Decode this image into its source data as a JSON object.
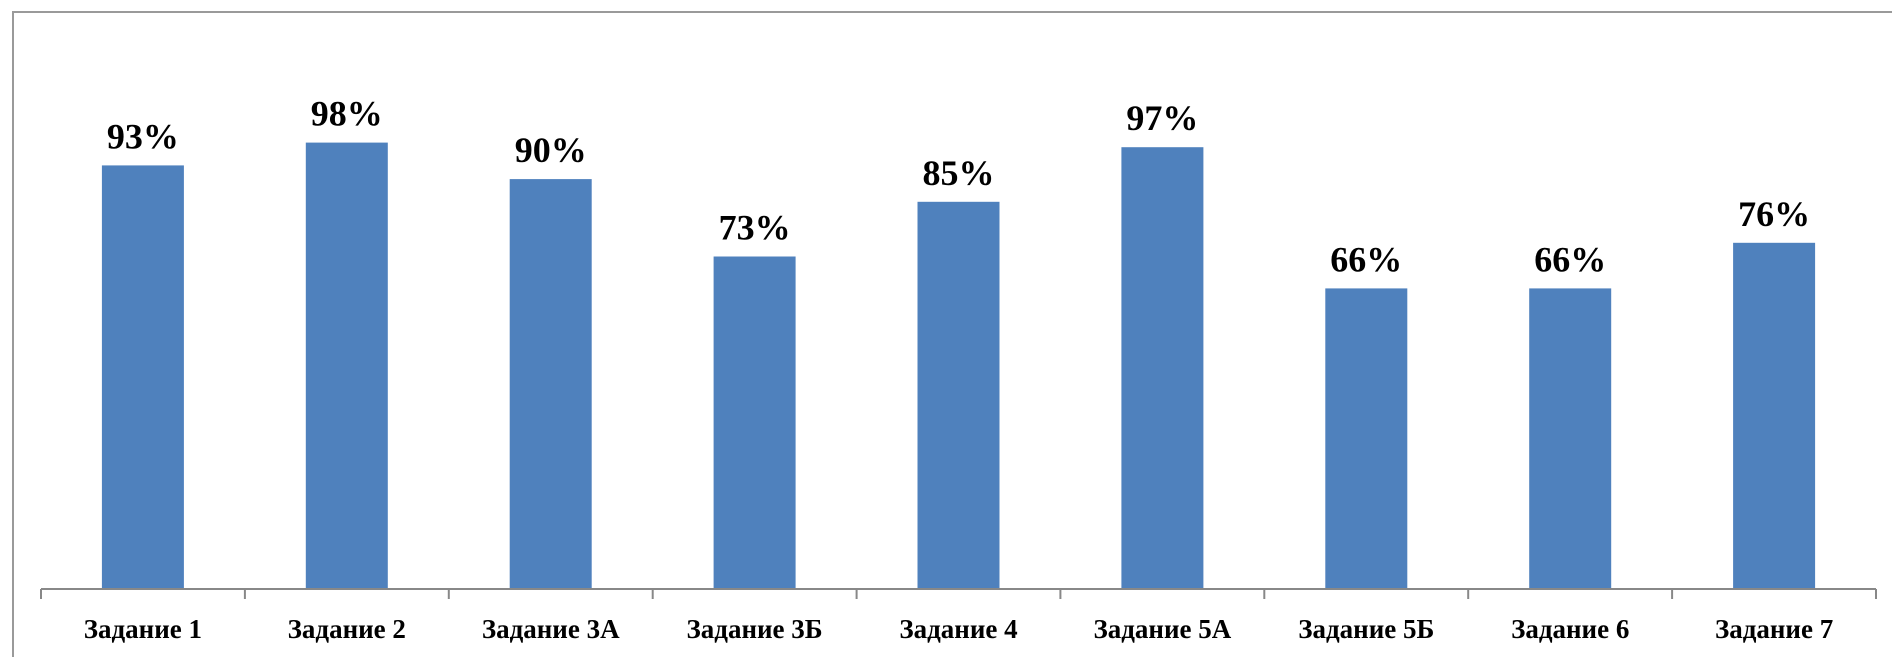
{
  "chart_data": {
    "type": "bar",
    "categories": [
      "Задание 1",
      "Задание 2",
      "Задание 3А",
      "Задание 3Б",
      "Задание 4",
      "Задание 5А",
      "Задание 5Б",
      "Задание 6",
      "Задание 7"
    ],
    "values": [
      93,
      98,
      90,
      73,
      85,
      97,
      66,
      66,
      76
    ],
    "value_labels": [
      "93%",
      "98%",
      "90%",
      "73%",
      "85%",
      "97%",
      "66%",
      "66%",
      "76%"
    ],
    "title": "",
    "xlabel": "",
    "ylabel": "",
    "ylim": [
      0,
      100
    ],
    "grid": false,
    "legend": "none",
    "colors": {
      "bar": "#4F81BD",
      "axis": "#888888",
      "frame": "#9a9a9a"
    }
  }
}
